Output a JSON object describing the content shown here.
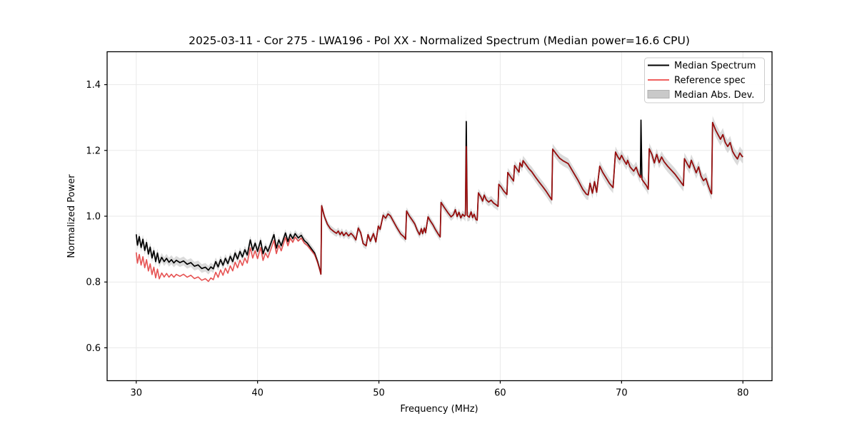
{
  "figure": {
    "title": "2025-03-11 - Cor 275 - LWA196 - Pol XX - Normalized Spectrum (Median power=16.6 CPU)",
    "xlabel": "Frequency (MHz)",
    "ylabel": "Normalized Power"
  },
  "legend": {
    "position": "upper right",
    "entries": [
      {
        "label": "Median Spectrum",
        "swatch": "line",
        "color": "#000000"
      },
      {
        "label": "Reference spec",
        "swatch": "line",
        "color": "#f0605f"
      },
      {
        "label": "Median Abs. Dev.",
        "swatch": "patch",
        "color": "#c9c9c9"
      }
    ]
  },
  "chart_data": {
    "type": "line",
    "title": "2025-03-11 - Cor 275 - LWA196 - Pol XX - Normalized Spectrum (Median power=16.6 CPU)",
    "xlabel": "Frequency (MHz)",
    "ylabel": "Normalized Power",
    "xlim": [
      27.6,
      82.4
    ],
    "ylim": [
      0.5,
      1.5
    ],
    "x_ticks": [
      30,
      40,
      50,
      60,
      70,
      80
    ],
    "y_ticks": [
      0.6,
      0.8,
      1.0,
      1.2,
      1.4
    ],
    "grid": true,
    "colors": {
      "median": "#000000",
      "reference": "#dd1111",
      "reference_alpha": 0.72,
      "band": "#bdbdbd",
      "band_alpha": 0.55,
      "gridline": "#e9e9e9"
    },
    "series": [
      {
        "name": "Median Spectrum",
        "points": [
          [
            30.0,
            0.945
          ],
          [
            30.1,
            0.912
          ],
          [
            30.25,
            0.938
          ],
          [
            30.4,
            0.905
          ],
          [
            30.55,
            0.93
          ],
          [
            30.7,
            0.896
          ],
          [
            30.85,
            0.92
          ],
          [
            31.0,
            0.885
          ],
          [
            31.15,
            0.906
          ],
          [
            31.3,
            0.873
          ],
          [
            31.45,
            0.895
          ],
          [
            31.6,
            0.862
          ],
          [
            31.75,
            0.888
          ],
          [
            31.9,
            0.858
          ],
          [
            32.1,
            0.875
          ],
          [
            32.3,
            0.862
          ],
          [
            32.5,
            0.872
          ],
          [
            32.7,
            0.86
          ],
          [
            32.9,
            0.868
          ],
          [
            33.1,
            0.858
          ],
          [
            33.3,
            0.866
          ],
          [
            33.6,
            0.859
          ],
          [
            33.9,
            0.864
          ],
          [
            34.2,
            0.854
          ],
          [
            34.5,
            0.859
          ],
          [
            34.8,
            0.848
          ],
          [
            35.1,
            0.852
          ],
          [
            35.4,
            0.841
          ],
          [
            35.7,
            0.845
          ],
          [
            35.95,
            0.836
          ],
          [
            36.15,
            0.846
          ],
          [
            36.35,
            0.84
          ],
          [
            36.55,
            0.862
          ],
          [
            36.75,
            0.846
          ],
          [
            36.95,
            0.868
          ],
          [
            37.15,
            0.851
          ],
          [
            37.35,
            0.872
          ],
          [
            37.55,
            0.856
          ],
          [
            37.75,
            0.878
          ],
          [
            37.95,
            0.862
          ],
          [
            38.15,
            0.888
          ],
          [
            38.35,
            0.87
          ],
          [
            38.55,
            0.893
          ],
          [
            38.75,
            0.876
          ],
          [
            38.95,
            0.898
          ],
          [
            39.15,
            0.882
          ],
          [
            39.4,
            0.928
          ],
          [
            39.6,
            0.896
          ],
          [
            39.8,
            0.918
          ],
          [
            40.0,
            0.893
          ],
          [
            40.25,
            0.926
          ],
          [
            40.45,
            0.886
          ],
          [
            40.65,
            0.908
          ],
          [
            40.85,
            0.893
          ],
          [
            41.1,
            0.918
          ],
          [
            41.35,
            0.944
          ],
          [
            41.55,
            0.903
          ],
          [
            41.75,
            0.928
          ],
          [
            41.95,
            0.91
          ],
          [
            42.3,
            0.949
          ],
          [
            42.5,
            0.923
          ],
          [
            42.7,
            0.945
          ],
          [
            42.9,
            0.932
          ],
          [
            43.1,
            0.947
          ],
          [
            43.35,
            0.934
          ],
          [
            43.6,
            0.942
          ],
          [
            43.85,
            0.926
          ],
          [
            44.1,
            0.918
          ],
          [
            44.4,
            0.903
          ],
          [
            44.7,
            0.888
          ],
          [
            44.95,
            0.862
          ],
          [
            45.15,
            0.835
          ],
          [
            45.22,
            0.824
          ],
          [
            45.28,
            1.032
          ],
          [
            45.5,
            1.0
          ],
          [
            45.75,
            0.976
          ],
          [
            46.0,
            0.962
          ],
          [
            46.3,
            0.953
          ],
          [
            46.5,
            0.948
          ],
          [
            46.65,
            0.955
          ],
          [
            46.8,
            0.944
          ],
          [
            46.95,
            0.952
          ],
          [
            47.1,
            0.941
          ],
          [
            47.3,
            0.95
          ],
          [
            47.5,
            0.94
          ],
          [
            47.7,
            0.948
          ],
          [
            47.9,
            0.94
          ],
          [
            48.1,
            0.928
          ],
          [
            48.3,
            0.964
          ],
          [
            48.5,
            0.95
          ],
          [
            48.7,
            0.917
          ],
          [
            48.95,
            0.91
          ],
          [
            49.1,
            0.944
          ],
          [
            49.3,
            0.924
          ],
          [
            49.55,
            0.947
          ],
          [
            49.75,
            0.922
          ],
          [
            49.95,
            0.97
          ],
          [
            50.1,
            0.96
          ],
          [
            50.35,
            1.003
          ],
          [
            50.55,
            0.994
          ],
          [
            50.75,
            1.007
          ],
          [
            50.95,
            1.001
          ],
          [
            51.2,
            0.984
          ],
          [
            51.5,
            0.964
          ],
          [
            51.8,
            0.946
          ],
          [
            52.1,
            0.936
          ],
          [
            52.2,
            0.93
          ],
          [
            52.28,
            1.016
          ],
          [
            52.5,
            1.001
          ],
          [
            52.75,
            0.988
          ],
          [
            52.95,
            0.977
          ],
          [
            53.15,
            0.958
          ],
          [
            53.35,
            0.944
          ],
          [
            53.5,
            0.962
          ],
          [
            53.6,
            0.947
          ],
          [
            53.75,
            0.964
          ],
          [
            53.85,
            0.95
          ],
          [
            54.05,
            0.998
          ],
          [
            54.25,
            0.985
          ],
          [
            54.45,
            0.974
          ],
          [
            54.65,
            0.96
          ],
          [
            54.85,
            0.948
          ],
          [
            55.05,
            0.937
          ],
          [
            55.12,
            1.042
          ],
          [
            55.4,
            1.026
          ],
          [
            55.7,
            1.01
          ],
          [
            55.95,
            0.998
          ],
          [
            56.15,
            1.005
          ],
          [
            56.3,
            1.02
          ],
          [
            56.45,
            0.999
          ],
          [
            56.6,
            1.012
          ],
          [
            56.75,
            0.995
          ],
          [
            56.9,
            1.006
          ],
          [
            57.05,
            1.0
          ],
          [
            57.13,
            1.004
          ],
          [
            57.2,
            1.288
          ],
          [
            57.28,
            1.002
          ],
          [
            57.45,
            0.997
          ],
          [
            57.6,
            1.013
          ],
          [
            57.72,
            0.996
          ],
          [
            57.85,
            1.006
          ],
          [
            58.0,
            0.99
          ],
          [
            58.1,
            0.988
          ],
          [
            58.2,
            1.071
          ],
          [
            58.4,
            1.059
          ],
          [
            58.55,
            1.046
          ],
          [
            58.68,
            1.064
          ],
          [
            58.85,
            1.05
          ],
          [
            59.05,
            1.043
          ],
          [
            59.25,
            1.049
          ],
          [
            59.45,
            1.04
          ],
          [
            59.65,
            1.035
          ],
          [
            59.82,
            1.03
          ],
          [
            59.88,
            1.097
          ],
          [
            60.05,
            1.09
          ],
          [
            60.3,
            1.076
          ],
          [
            60.55,
            1.066
          ],
          [
            60.62,
            1.133
          ],
          [
            60.85,
            1.12
          ],
          [
            61.1,
            1.107
          ],
          [
            61.18,
            1.154
          ],
          [
            61.4,
            1.142
          ],
          [
            61.55,
            1.134
          ],
          [
            61.62,
            1.162
          ],
          [
            61.8,
            1.15
          ],
          [
            61.88,
            1.169
          ],
          [
            62.1,
            1.158
          ],
          [
            62.35,
            1.145
          ],
          [
            62.6,
            1.135
          ],
          [
            62.9,
            1.119
          ],
          [
            63.2,
            1.104
          ],
          [
            63.5,
            1.09
          ],
          [
            63.8,
            1.075
          ],
          [
            64.1,
            1.058
          ],
          [
            64.25,
            1.05
          ],
          [
            64.32,
            1.204
          ],
          [
            64.6,
            1.19
          ],
          [
            64.9,
            1.176
          ],
          [
            65.2,
            1.168
          ],
          [
            65.6,
            1.16
          ],
          [
            66.0,
            1.135
          ],
          [
            66.4,
            1.11
          ],
          [
            66.8,
            1.082
          ],
          [
            67.1,
            1.067
          ],
          [
            67.25,
            1.065
          ],
          [
            67.4,
            1.1
          ],
          [
            67.6,
            1.07
          ],
          [
            67.77,
            1.105
          ],
          [
            67.95,
            1.073
          ],
          [
            68.2,
            1.152
          ],
          [
            68.45,
            1.133
          ],
          [
            68.7,
            1.118
          ],
          [
            69.0,
            1.1
          ],
          [
            69.3,
            1.087
          ],
          [
            69.5,
            1.195
          ],
          [
            69.7,
            1.18
          ],
          [
            69.85,
            1.172
          ],
          [
            70.0,
            1.185
          ],
          [
            70.2,
            1.17
          ],
          [
            70.4,
            1.158
          ],
          [
            70.5,
            1.17
          ],
          [
            70.7,
            1.15
          ],
          [
            71.0,
            1.137
          ],
          [
            71.2,
            1.149
          ],
          [
            71.4,
            1.128
          ],
          [
            71.55,
            1.118
          ],
          [
            71.6,
            1.292
          ],
          [
            71.68,
            1.112
          ],
          [
            71.85,
            1.103
          ],
          [
            72.05,
            1.093
          ],
          [
            72.2,
            1.082
          ],
          [
            72.28,
            1.205
          ],
          [
            72.5,
            1.188
          ],
          [
            72.7,
            1.162
          ],
          [
            72.9,
            1.188
          ],
          [
            73.1,
            1.163
          ],
          [
            73.3,
            1.18
          ],
          [
            73.5,
            1.166
          ],
          [
            73.8,
            1.152
          ],
          [
            74.1,
            1.14
          ],
          [
            74.4,
            1.128
          ],
          [
            74.7,
            1.113
          ],
          [
            75.0,
            1.098
          ],
          [
            75.1,
            1.093
          ],
          [
            75.18,
            1.175
          ],
          [
            75.4,
            1.16
          ],
          [
            75.6,
            1.147
          ],
          [
            75.75,
            1.17
          ],
          [
            75.95,
            1.152
          ],
          [
            76.15,
            1.132
          ],
          [
            76.35,
            1.15
          ],
          [
            76.55,
            1.122
          ],
          [
            76.75,
            1.108
          ],
          [
            76.95,
            1.115
          ],
          [
            77.15,
            1.092
          ],
          [
            77.35,
            1.072
          ],
          [
            77.42,
            1.068
          ],
          [
            77.5,
            1.285
          ],
          [
            77.75,
            1.262
          ],
          [
            77.95,
            1.248
          ],
          [
            78.15,
            1.234
          ],
          [
            78.35,
            1.248
          ],
          [
            78.55,
            1.224
          ],
          [
            78.75,
            1.212
          ],
          [
            78.95,
            1.224
          ],
          [
            79.15,
            1.197
          ],
          [
            79.35,
            1.184
          ],
          [
            79.55,
            1.174
          ],
          [
            79.75,
            1.192
          ],
          [
            79.95,
            1.181
          ],
          [
            80.0,
            1.183
          ]
        ]
      },
      {
        "name": "Reference spec",
        "derived": "median_minus_offset",
        "offset_breakpoints": [
          [
            30,
            0.055
          ],
          [
            32,
            0.048
          ],
          [
            34,
            0.04
          ],
          [
            36,
            0.034
          ],
          [
            38,
            0.028
          ],
          [
            40,
            0.022
          ],
          [
            41.5,
            0.017
          ],
          [
            43,
            0.011
          ],
          [
            44,
            0.007
          ],
          [
            44.8,
            0.004
          ],
          [
            45.1,
            0.002
          ],
          [
            45.25,
            0.0
          ],
          [
            80,
            0.0
          ]
        ],
        "spike_caps": [
          {
            "freq": 57.2,
            "cap": 1.212
          },
          {
            "freq": 71.6,
            "cap": 1.125
          }
        ]
      },
      {
        "name": "Median Abs. Dev.",
        "type": "band",
        "around": "Median Spectrum",
        "halfwidth_breakpoints": [
          [
            30,
            0.014
          ],
          [
            36,
            0.013
          ],
          [
            44,
            0.011
          ],
          [
            50,
            0.011
          ],
          [
            55,
            0.012
          ],
          [
            57.1,
            0.012
          ],
          [
            57.2,
            0.04
          ],
          [
            57.3,
            0.012
          ],
          [
            59,
            0.013
          ],
          [
            62,
            0.015
          ],
          [
            64.3,
            0.016
          ],
          [
            67,
            0.016
          ],
          [
            69.5,
            0.017
          ],
          [
            71.5,
            0.017
          ],
          [
            71.6,
            0.02
          ],
          [
            71.7,
            0.017
          ],
          [
            74,
            0.018
          ],
          [
            77.4,
            0.018
          ],
          [
            77.5,
            0.02
          ],
          [
            80,
            0.02
          ]
        ]
      }
    ]
  }
}
